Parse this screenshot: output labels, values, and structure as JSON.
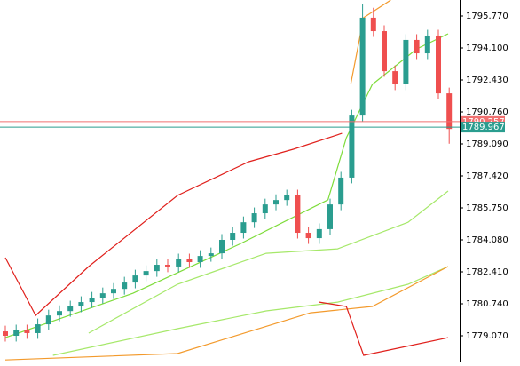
{
  "chart_data": {
    "type": "candlestick",
    "up_color": "#2a9d8f",
    "down_color": "#ef4f4f",
    "open": [
      1779.3,
      1779.07,
      1779.35,
      1779.21,
      1779.67,
      1780.13,
      1780.36,
      1780.6,
      1780.83,
      1781.06,
      1781.29,
      1781.52,
      1781.85,
      1782.22,
      1782.45,
      1782.78,
      1782.69,
      1783.06,
      1782.92,
      1783.24,
      1783.38,
      1784.08,
      1784.45,
      1785.0,
      1785.47,
      1785.93,
      1786.16,
      1786.4,
      1784.45,
      1784.17,
      1784.64,
      1785.93,
      1787.33,
      1790.57,
      1795.68,
      1794.98,
      1792.89,
      1792.2,
      1794.52,
      1793.82,
      1794.75,
      1791.73
    ],
    "high": [
      1779.6,
      1779.65,
      1779.65,
      1779.97,
      1780.43,
      1780.66,
      1780.9,
      1781.13,
      1781.36,
      1781.59,
      1781.82,
      1782.15,
      1782.52,
      1782.75,
      1783.08,
      1783.08,
      1783.36,
      1783.36,
      1783.54,
      1783.68,
      1784.38,
      1784.75,
      1785.3,
      1785.77,
      1786.23,
      1786.46,
      1786.7,
      1786.7,
      1784.75,
      1784.94,
      1786.23,
      1787.63,
      1790.87,
      1796.4,
      1796.2,
      1795.28,
      1793.19,
      1794.82,
      1794.82,
      1795.05,
      1795.05,
      1792.03
    ],
    "low": [
      1778.77,
      1778.77,
      1778.91,
      1778.91,
      1779.37,
      1779.83,
      1780.06,
      1780.3,
      1780.53,
      1780.76,
      1780.99,
      1781.22,
      1781.55,
      1781.92,
      1782.15,
      1782.39,
      1782.39,
      1782.62,
      1782.62,
      1782.94,
      1783.08,
      1783.78,
      1784.15,
      1784.7,
      1785.17,
      1785.63,
      1785.86,
      1784.15,
      1783.87,
      1783.87,
      1784.34,
      1785.63,
      1787.03,
      1790.27,
      1794.68,
      1792.59,
      1791.9,
      1791.9,
      1793.52,
      1793.52,
      1791.43,
      1789.1
    ],
    "close": [
      1779.07,
      1779.35,
      1779.21,
      1779.67,
      1780.13,
      1780.36,
      1780.6,
      1780.83,
      1781.06,
      1781.29,
      1781.52,
      1781.85,
      1782.22,
      1782.45,
      1782.78,
      1782.69,
      1783.06,
      1782.92,
      1783.24,
      1783.38,
      1784.08,
      1784.45,
      1785.0,
      1785.47,
      1785.93,
      1786.16,
      1786.4,
      1784.45,
      1784.17,
      1784.64,
      1785.93,
      1787.33,
      1790.57,
      1795.68,
      1794.98,
      1792.89,
      1792.2,
      1794.52,
      1793.82,
      1794.75,
      1791.73,
      1789.87
    ],
    "series": [
      {
        "color": "#7edc3a",
        "x": [
          0,
          11.8,
          21.6,
          29.8,
          31.5,
          33.9,
          38.0,
          40.9
        ],
        "values": [
          1778.97,
          1781.29,
          1783.85,
          1786.17,
          1789.41,
          1792.2,
          1794.05,
          1794.84
        ]
      },
      {
        "color": "#a6e86a",
        "x": [
          7.7,
          15.9,
          24.1,
          30.7,
          37.2,
          40.9
        ],
        "values": [
          1779.21,
          1781.76,
          1783.38,
          1783.61,
          1785.0,
          1786.63
        ]
      },
      {
        "color": "#a6e86a",
        "x": [
          4.4,
          15.9,
          24.1,
          30.7,
          37.2,
          40.9
        ],
        "values": [
          1778.05,
          1779.44,
          1780.37,
          1780.83,
          1781.76,
          1782.69
        ]
      },
      {
        "color": "#f39a2c",
        "x": [
          0,
          15.9,
          28.2,
          33.9,
          40.9
        ],
        "values": [
          1777.81,
          1778.14,
          1780.27,
          1780.6,
          1782.69
        ]
      },
      {
        "color": "#f39a2c",
        "x": [
          31.9,
          33.1,
          35.6
        ],
        "values": [
          1792.2,
          1795.68,
          1796.6
        ]
      },
      {
        "color": "#e0201c",
        "x": [
          0,
          2.8,
          7.7,
          15.9,
          22.5,
          26.6,
          31.1
        ],
        "values": [
          1783.15,
          1780.13,
          1782.69,
          1786.4,
          1788.16,
          1788.81,
          1789.64
        ]
      },
      {
        "color": "#e0201c",
        "x": [
          29.0,
          31.5,
          33.1,
          40.9
        ],
        "values": [
          1780.83,
          1780.6,
          1778.05,
          1778.97
        ]
      }
    ],
    "price_lines": [
      {
        "value": 1790.257,
        "color": "#f07070"
      },
      {
        "value": 1789.967,
        "color": "#2a9d8f"
      }
    ],
    "ylim": [
      1777.678,
      1796.605
    ],
    "yticks": [
      {
        "value": 1795.77,
        "label": "1795.770"
      },
      {
        "value": 1794.1,
        "label": "1794.100"
      },
      {
        "value": 1792.43,
        "label": "1792.430"
      },
      {
        "value": 1790.76,
        "label": "1790.760"
      },
      {
        "value": 1789.09,
        "label": "1789.090"
      },
      {
        "value": 1787.42,
        "label": "1787.420"
      },
      {
        "value": 1785.75,
        "label": "1785.750"
      },
      {
        "value": 1784.08,
        "label": "1784.080"
      },
      {
        "value": 1782.41,
        "label": "1782.410"
      },
      {
        "value": 1780.74,
        "label": "1780.740"
      },
      {
        "value": 1779.07,
        "label": "1779.070"
      }
    ],
    "grid": false
  }
}
